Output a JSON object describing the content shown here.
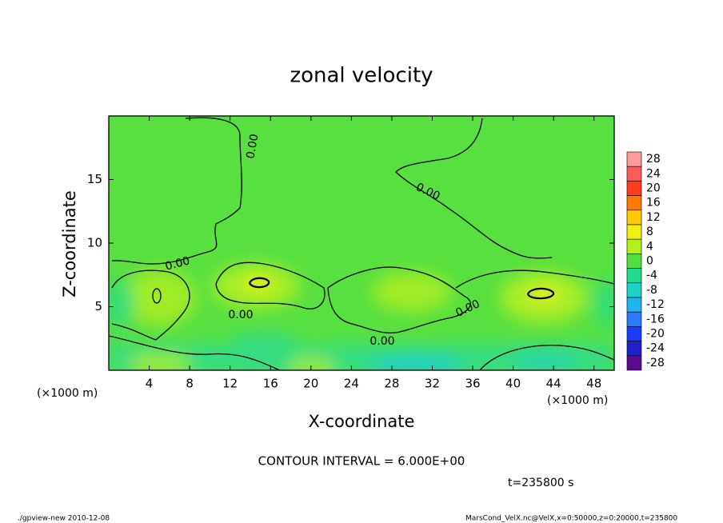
{
  "chart_data": {
    "type": "contour",
    "title": "zonal velocity",
    "x_label": "X-coordinate",
    "y_label": "Z-coordinate",
    "x_unit": "(×1000 m)",
    "xlim": [
      0,
      50
    ],
    "xticks": [
      4,
      8,
      12,
      16,
      20,
      24,
      28,
      32,
      36,
      40,
      44,
      48
    ],
    "ylim": [
      0,
      20
    ],
    "yticks": [
      5,
      10,
      15
    ],
    "contour_labels": [
      "0.00",
      "0.00",
      "0.00",
      "0.00",
      "0.00",
      "0.00"
    ],
    "colorbar": {
      "ticks": [
        28,
        24,
        20,
        16,
        12,
        8,
        4,
        0,
        -4,
        -8,
        -12,
        -16,
        -20,
        -24,
        -28
      ],
      "colors": [
        "#ff9a9a",
        "#ff5a5a",
        "#ff3c1e",
        "#ff7800",
        "#ffc800",
        "#f0f014",
        "#b4f01e",
        "#50e040",
        "#20dc8c",
        "#1ed2c8",
        "#20b4f0",
        "#2a7cff",
        "#1a3cff",
        "#2020c8",
        "#5a0a8c"
      ]
    },
    "contour_interval": "CONTOUR INTERVAL = 6.000E+00",
    "time_label": "t=235800 s",
    "footer_left": "./gpview-new  2010-12-08",
    "footer_right": "MarsCond_VelX.nc@VelX,x=0:50000,z=0:20000,t=235800"
  }
}
